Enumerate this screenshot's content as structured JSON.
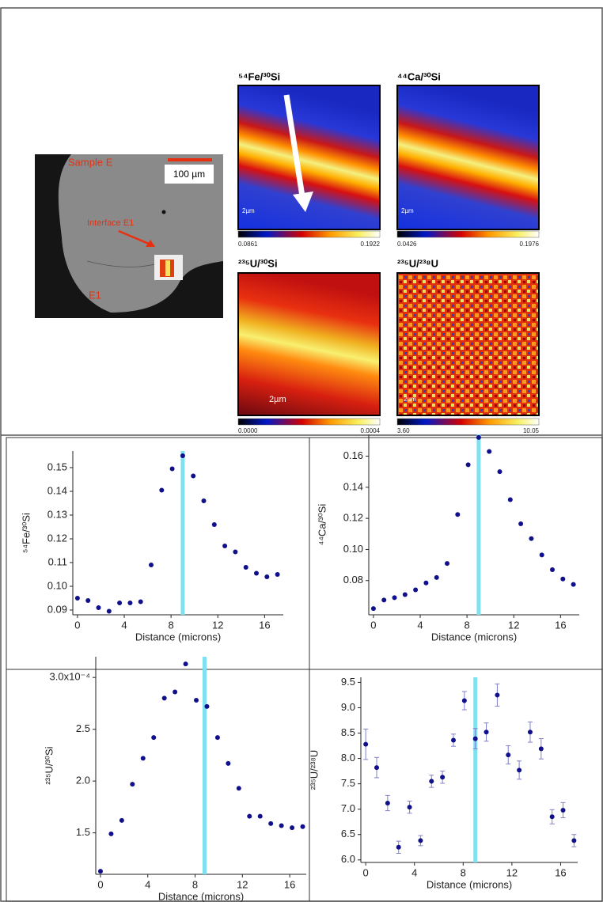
{
  "images": {
    "sem": {
      "title": "Sample E",
      "scale": "100 µm",
      "interface": "Interface E1",
      "label": "E1"
    },
    "maps": [
      {
        "title": "⁵⁴Fe/³⁰Si",
        "min": "0.0861",
        "max": "0.1922",
        "scale": "2µm"
      },
      {
        "title": "⁴⁴Ca/³⁰Si",
        "min": "0.0426",
        "max": "0.1976",
        "scale": "2µm"
      },
      {
        "title": "²³⁵U/³⁰Si",
        "min": "0.0000",
        "max": "0.0004",
        "scale": "2µm"
      },
      {
        "title": "²³⁵U/²³⁸U",
        "min": "3.60",
        "max": "10.05",
        "scale": "2µm"
      }
    ]
  },
  "chart_data": [
    {
      "type": "scatter",
      "y_label": "⁵⁴Fe/³⁰Si",
      "x_label": "Distance (microns)",
      "color": "#10108c",
      "x": [
        0,
        0.9,
        1.8,
        2.7,
        3.6,
        4.5,
        5.4,
        6.3,
        7.2,
        8.1,
        9.0,
        9.9,
        10.8,
        11.7,
        12.6,
        13.5,
        14.4,
        15.3,
        16.2,
        17.1
      ],
      "values": [
        0.095,
        0.094,
        0.091,
        0.0895,
        0.093,
        0.093,
        0.0935,
        0.109,
        0.1405,
        0.1495,
        0.155,
        0.1465,
        0.136,
        0.126,
        0.117,
        0.1145,
        0.108,
        0.1055,
        0.104,
        0.105
      ],
      "xlim": [
        -0.4,
        17.6
      ],
      "ylim": [
        0.088,
        0.157
      ],
      "xticks": [
        0,
        4,
        8,
        12,
        16
      ],
      "yticks": [
        0.09,
        {
          "value": 0.1,
          "label": "0.10"
        },
        0.11,
        0.12,
        0.13,
        0.14,
        0.15
      ],
      "highlight_x": 9,
      "highlight_color": "#7fe0f0"
    },
    {
      "type": "scatter",
      "y_label": "⁴⁴Ca/³⁰Si",
      "x_label": "Distance (microns)",
      "color": "#10108c",
      "x": [
        0,
        0.9,
        1.8,
        2.7,
        3.6,
        4.5,
        5.4,
        6.3,
        7.2,
        8.1,
        9.0,
        9.9,
        10.8,
        11.7,
        12.6,
        13.5,
        14.4,
        15.3,
        16.2,
        17.1
      ],
      "values": [
        0.062,
        0.0675,
        0.069,
        0.071,
        0.074,
        0.0785,
        0.082,
        0.091,
        0.1225,
        0.1545,
        0.172,
        0.163,
        0.15,
        0.132,
        0.1165,
        0.107,
        0.0965,
        0.087,
        0.081,
        0.0775
      ],
      "xlim": [
        -0.4,
        17.6
      ],
      "ylim": [
        0.058,
        0.174
      ],
      "xticks": [
        0,
        4,
        8,
        12,
        16
      ],
      "yticks": [
        0.08,
        {
          "value": 0.1,
          "label": "0.10"
        },
        0.12,
        0.14,
        0.16
      ],
      "highlight_x": 9,
      "highlight_color": "#7fe0f0"
    },
    {
      "type": "scatter",
      "y_label": "²³⁵U/³⁰Si",
      "x_label": "Distance (microns)",
      "color": "#10108c",
      "x": [
        0,
        0.9,
        1.8,
        2.7,
        3.6,
        4.5,
        5.4,
        6.3,
        7.2,
        8.1,
        9.0,
        9.9,
        10.8,
        11.7,
        12.6,
        13.5,
        14.4,
        15.3,
        16.2,
        17.1
      ],
      "values": [
        0.000113,
        0.000149,
        0.000162,
        0.000197,
        0.000222,
        0.000242,
        0.00028,
        0.000286,
        0.000313,
        0.000278,
        0.000272,
        0.000242,
        0.000217,
        0.000193,
        0.000166,
        0.000166,
        0.000159,
        0.000157,
        0.000155,
        0.000156
      ],
      "xlim": [
        -0.4,
        17.4
      ],
      "ylim": [
        0.00011,
        0.00032
      ],
      "xticks": [
        0,
        4,
        8,
        12,
        16
      ],
      "yticks": [
        {
          "value": 0.00015,
          "label": "1.5"
        },
        {
          "value": 0.0002,
          "label": "2.0"
        },
        {
          "value": 0.00025,
          "label": "2.5"
        },
        {
          "value": 0.0003,
          "label": "3.0x10⁻⁴"
        }
      ],
      "highlight_x": 8.8,
      "highlight_color": "#7fe0f0"
    },
    {
      "type": "errorbar",
      "y_label": "²³⁵U/²³⁸U",
      "x_label": "Distance (microns)",
      "color": "#10108c",
      "x": [
        0,
        0.9,
        1.8,
        2.7,
        3.6,
        4.5,
        5.4,
        6.3,
        7.2,
        8.1,
        9.0,
        9.9,
        10.8,
        11.7,
        12.6,
        13.5,
        14.4,
        15.3,
        16.2,
        17.1
      ],
      "values": [
        8.28,
        7.82,
        7.12,
        6.25,
        7.04,
        6.38,
        7.55,
        7.63,
        8.36,
        9.14,
        8.39,
        8.52,
        9.25,
        8.07,
        7.77,
        8.52,
        8.19,
        6.85,
        6.98,
        6.38
      ],
      "errors": [
        0.3,
        0.2,
        0.15,
        0.12,
        0.12,
        0.1,
        0.12,
        0.12,
        0.12,
        0.18,
        0.2,
        0.18,
        0.22,
        0.18,
        0.18,
        0.2,
        0.2,
        0.14,
        0.15,
        0.12
      ],
      "xlim": [
        -0.4,
        17.4
      ],
      "ylim": [
        5.95,
        9.6
      ],
      "xticks": [
        0,
        4,
        8,
        12,
        16
      ],
      "yticks": [
        {
          "value": 6,
          "label": "6.0"
        },
        6.5,
        {
          "value": 7,
          "label": "7.0"
        },
        7.5,
        {
          "value": 8,
          "label": "8.0"
        },
        8.5,
        {
          "value": 9,
          "label": "9.0"
        },
        9.5
      ],
      "highlight_x": 9,
      "highlight_color": "#7fe0f0"
    }
  ]
}
